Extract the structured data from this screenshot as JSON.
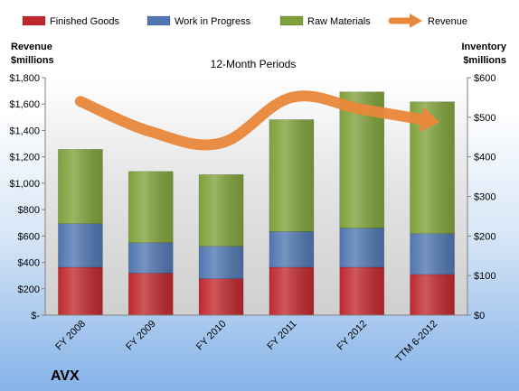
{
  "chart_data": {
    "type": "bar",
    "stacked": true,
    "title": "12-Month Periods",
    "company": "AVX",
    "left_axis": {
      "title_lines": [
        "Revenue",
        "$millions"
      ],
      "ylim": [
        0,
        1800
      ],
      "ticks": [
        0,
        200,
        400,
        600,
        800,
        1000,
        1200,
        1400,
        1600,
        1800
      ],
      "tick_labels": [
        "$-",
        "$200",
        "$400",
        "$600",
        "$800",
        "$1,000",
        "$1,200",
        "$1,400",
        "$1,600",
        "$1,800"
      ]
    },
    "right_axis": {
      "title_lines": [
        "Inventory",
        "$millions"
      ],
      "ylim": [
        0,
        600
      ],
      "ticks": [
        0,
        100,
        200,
        300,
        400,
        500,
        600
      ],
      "tick_labels": [
        "$0",
        "$100",
        "$200",
        "$300",
        "$400",
        "$500",
        "$600"
      ]
    },
    "categories": [
      "FY 2008",
      "FY 2009",
      "FY 2010",
      "FY 2011",
      "FY 2012",
      "TTM 6-2012"
    ],
    "series": [
      {
        "name": "Finished Goods",
        "kind": "bar",
        "axis": "right",
        "color": "#c0282d",
        "values": [
          121,
          106,
          92,
          121,
          121,
          103
        ]
      },
      {
        "name": "Work in Progress",
        "kind": "bar",
        "axis": "right",
        "color": "#4f76b0",
        "values": [
          110,
          77,
          82,
          90,
          99,
          103
        ]
      },
      {
        "name": "Raw Materials",
        "kind": "bar",
        "axis": "right",
        "color": "#7fa13a",
        "values": [
          188,
          180,
          181,
          283,
          344,
          333
        ]
      },
      {
        "name": "Revenue",
        "kind": "line",
        "axis": "left",
        "color": "#e9873a",
        "values": [
          1620,
          1390,
          1305,
          1650,
          1560,
          1470
        ]
      }
    ],
    "grid": false,
    "legend_position": "top"
  }
}
